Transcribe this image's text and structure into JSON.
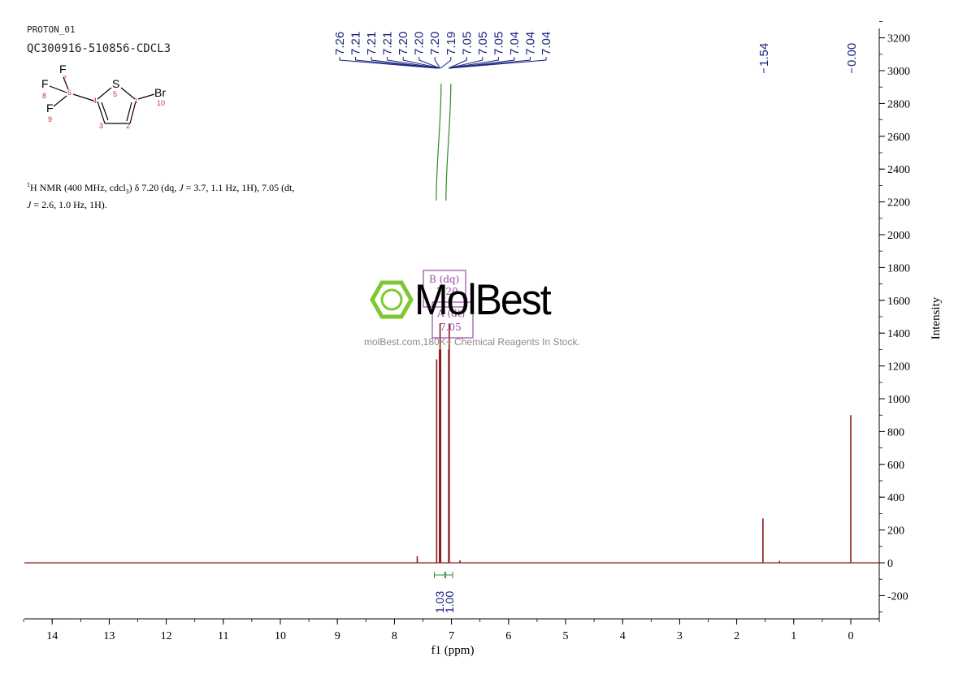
{
  "header": {
    "experiment": "PROTON_01",
    "sample_id": "QC300916-510856-CDCL3"
  },
  "description": {
    "nucleus_sup": "1",
    "part1": "H NMR (400 MHz, cdcl",
    "sub": "3",
    "part2": ") δ 7.20 (dq, ",
    "j1": "J",
    "part3": " = 3.7, 1.1 Hz, 1H), 7.05 (dt,",
    "j2": "J",
    "part4": " = 2.6, 1.0 Hz, 1H)."
  },
  "structure": {
    "atoms": [
      "F",
      "7",
      "F",
      "8",
      "6",
      "F",
      "9",
      "S",
      "5",
      "4",
      "1",
      "Br",
      "10",
      "3",
      "2"
    ]
  },
  "multiplet_box": {
    "label_a": "B (dq)",
    "value_a": "7.20",
    "label_b": "A (dt)",
    "value_b": "7.05"
  },
  "watermark": {
    "brand": "MolBest",
    "tagline": "molBest.com,180K+ Chemical Reagents In Stock."
  },
  "chart_data": {
    "type": "line",
    "title": "",
    "xlabel": "f1 (ppm)",
    "ylabel": "Intensity",
    "x_reversed": true,
    "xlim": [
      14.5,
      -0.5
    ],
    "ylim": [
      -300,
      3300
    ],
    "x_ticks": [
      14,
      13,
      12,
      11,
      10,
      9,
      8,
      7,
      6,
      5,
      4,
      3,
      2,
      1,
      0
    ],
    "y_ticks": [
      -200,
      0,
      200,
      400,
      600,
      800,
      1000,
      1200,
      1400,
      1600,
      1800,
      2000,
      2200,
      2400,
      2600,
      2800,
      3000,
      3200
    ],
    "peaks": [
      {
        "ppm": 7.6,
        "height": 40
      },
      {
        "ppm": 7.26,
        "height": 1240
      },
      {
        "ppm": 7.21,
        "height": 1300
      },
      {
        "ppm": 7.2,
        "height": 1460
      },
      {
        "ppm": 7.19,
        "height": 1300
      },
      {
        "ppm": 7.05,
        "height": 1300
      },
      {
        "ppm": 7.04,
        "height": 1460
      },
      {
        "ppm": 6.85,
        "height": 15
      },
      {
        "ppm": 1.54,
        "height": 270
      },
      {
        "ppm": 1.25,
        "height": 12
      },
      {
        "ppm": 0.0,
        "height": 900
      }
    ],
    "peak_labels": [
      "7.26",
      "7.21",
      "7.21",
      "7.21",
      "7.20",
      "7.20",
      "7.20",
      "7.19",
      "7.05",
      "7.05",
      "7.05",
      "7.04",
      "7.04",
      "7.04"
    ],
    "single_labels": [
      {
        "ppm": 1.54,
        "text": "1.54"
      },
      {
        "ppm": 0.0,
        "text": "0.00"
      }
    ],
    "integrals": [
      {
        "from": 7.3,
        "to": 7.12,
        "value": "1.03"
      },
      {
        "from": 7.1,
        "to": 6.98,
        "value": "1.00"
      }
    ],
    "colors": {
      "spectrum": "#8b1a1a",
      "peak_label": "#1a237e",
      "integral": "#2e8b2e",
      "box": "#9b4aa8",
      "atom_num": "#c0392b",
      "logo": "#7dc832"
    }
  }
}
